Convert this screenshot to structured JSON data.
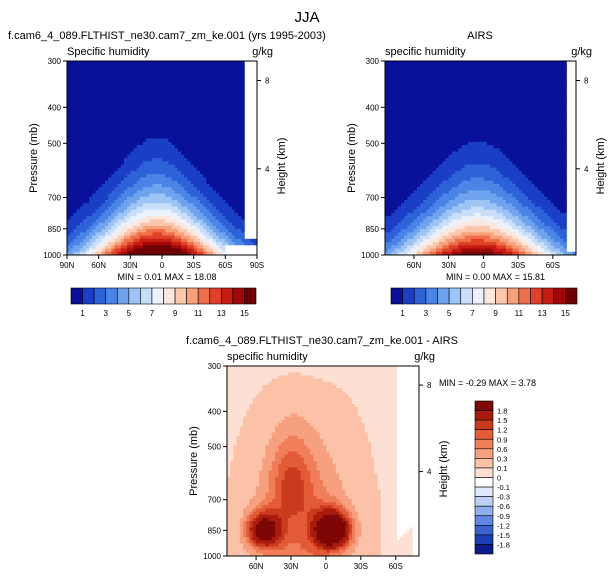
{
  "page_title": "JJA",
  "chart_data": [
    {
      "type": "heatmap",
      "title": "f.cam6_4_089.FLTHIST_ne30.cam7_zm_ke.001 (yrs 1995-2003)",
      "left_label": "Specific humidity",
      "right_label": "g/kg",
      "ylabel": "Pressure (mb)",
      "ylabel_right": "Height (km)",
      "x_ticks": [
        "90N",
        "60N",
        "30N",
        "0",
        "30S",
        "60S",
        "90S"
      ],
      "x_values": [
        90,
        60,
        30,
        0,
        -30,
        -60,
        -90
      ],
      "xlim": [
        90,
        -90
      ],
      "y_ticks": [
        "300",
        "400",
        "500",
        "700",
        "850",
        "1000"
      ],
      "y_values": [
        300,
        400,
        500,
        700,
        850,
        1000
      ],
      "ylim": [
        300,
        1000
      ],
      "height_ticks": [
        "8",
        "4"
      ],
      "height_values": [
        8,
        4
      ],
      "stats": "MIN =  0.01  MAX = 18.08",
      "min": 0.01,
      "max": 18.08,
      "colorbar_ticks": [
        "1",
        "3",
        "5",
        "7",
        "9",
        "11",
        "13",
        "15"
      ],
      "colorbar_orientation": "horizontal",
      "peak_value": 18,
      "peak_lat": 5,
      "surface_mask": {
        "lat_from": -60,
        "lat_to": -90,
        "pressure_above": 945
      }
    },
    {
      "type": "heatmap",
      "title": "AIRS",
      "left_label": "specific humidity",
      "right_label": "g/kg",
      "ylabel": "Pressure (mb)",
      "ylabel_right": "Height (km)",
      "x_ticks": [
        "60N",
        "30N",
        "0",
        "30S",
        "60S"
      ],
      "x_values": [
        60,
        30,
        0,
        -30,
        -60
      ],
      "xlim": [
        85,
        -80
      ],
      "y_ticks": [
        "300",
        "400",
        "500",
        "700",
        "850",
        "1000"
      ],
      "y_values": [
        300,
        400,
        500,
        700,
        850,
        1000
      ],
      "ylim": [
        300,
        1000
      ],
      "height_ticks": [
        "8",
        "4"
      ],
      "height_values": [
        8,
        4
      ],
      "stats": "MIN =  0.00  MAX = 15.81",
      "min": 0.0,
      "max": 15.81,
      "colorbar_ticks": [
        "1",
        "3",
        "5",
        "7",
        "9",
        "11",
        "13",
        "15"
      ],
      "colorbar_orientation": "horizontal",
      "peak_value": 15.8,
      "peak_lat": 5
    },
    {
      "type": "heatmap",
      "title": "f.cam6_4_089.FLTHIST_ne30.cam7_zm_ke.001 - AIRS",
      "left_label": "specific humidity",
      "right_label": "g/kg",
      "ylabel": "Pressure (mb)",
      "ylabel_right": "Height (km)",
      "x_ticks": [
        "60N",
        "30N",
        "0",
        "30S",
        "60S"
      ],
      "x_values": [
        60,
        30,
        0,
        -30,
        -60
      ],
      "xlim": [
        85,
        -80
      ],
      "y_ticks": [
        "300",
        "400",
        "500",
        "700",
        "850",
        "1000"
      ],
      "y_values": [
        300,
        400,
        500,
        700,
        850,
        1000
      ],
      "ylim": [
        300,
        1000
      ],
      "height_ticks": [
        "8",
        "4"
      ],
      "height_values": [
        8,
        4
      ],
      "stats": "MIN = -0.29  MAX =  3.78",
      "min": -0.29,
      "max": 3.78,
      "colorbar_ticks": [
        "1.8",
        "1.5",
        "1.2",
        "0.9",
        "0.6",
        "0.3",
        "0.1",
        "0",
        "-0.1",
        "-0.3",
        "-0.6",
        "-0.9",
        "-1.2",
        "-1.5",
        "-1.8"
      ],
      "colorbar_orientation": "vertical",
      "peaks": [
        {
          "lat": 53,
          "pressure": 850,
          "value": 2.5
        },
        {
          "lat": -5,
          "pressure": 850,
          "value": 3.7
        }
      ]
    }
  ],
  "colors": {
    "abs_scale": [
      "#08119a",
      "#1a3fc6",
      "#2d62d9",
      "#4a84e6",
      "#6fa3ee",
      "#9cc4f5",
      "#c9def9",
      "#ebf2fc",
      "#fde7dc",
      "#fbc7ad",
      "#f8a07a",
      "#ef6f4b",
      "#de4127",
      "#c51c12",
      "#a2080a",
      "#6e0004"
    ],
    "diff_scale": [
      "#0b1a8c",
      "#1c3fb5",
      "#3a62d0",
      "#6087e2",
      "#8eaeee",
      "#bdd1f7",
      "#dfe9fb",
      "#ffffff",
      "#fde0d3",
      "#fbc2a8",
      "#f7a07f",
      "#f07e59",
      "#e35b37",
      "#cc3a1e",
      "#a81b0d",
      "#7c0704"
    ]
  }
}
